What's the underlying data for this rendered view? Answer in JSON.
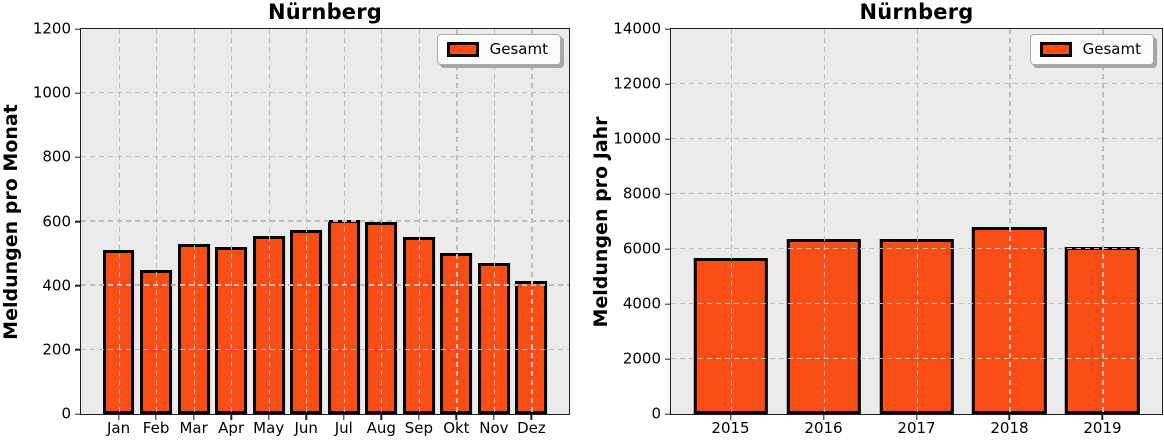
{
  "style": {
    "figure_background": "#ffffff",
    "plot_background": "#ebebeb",
    "grid_color": "#bdbdbd",
    "spine_color": "#1f1f1f",
    "bar_fill": "#fb4e16",
    "bar_edge": "#000000",
    "legend_background": "#fcfcfc",
    "legend_border": "#aaaaaa",
    "legend_shadow": "#a6a6a6"
  },
  "chart_data": [
    {
      "type": "bar",
      "title": "Nürnberg",
      "ylabel": "Meldungen pro Monat",
      "xlabel": "",
      "legend_label": "Gesamt",
      "legend_position": "upper right",
      "grid": true,
      "categories": [
        "Jan",
        "Feb",
        "Mar",
        "Apr",
        "May",
        "Jun",
        "Jul",
        "Aug",
        "Sep",
        "Okt",
        "Nov",
        "Dez"
      ],
      "values": [
        510,
        450,
        530,
        520,
        556,
        572,
        605,
        597,
        551,
        503,
        470,
        415
      ],
      "ylim": [
        0,
        1200
      ],
      "ytick_step": 200,
      "xlim": [
        -1,
        12
      ],
      "bar_width": 0.85
    },
    {
      "type": "bar",
      "title": "Nürnberg",
      "ylabel": "Meldungen pro Jahr",
      "xlabel": "",
      "legend_label": "Gesamt",
      "legend_position": "upper right",
      "grid": true,
      "categories": [
        "2015",
        "2016",
        "2017",
        "2018",
        "2019"
      ],
      "values": [
        5680,
        6370,
        6360,
        6800,
        6080
      ],
      "ylim": [
        0,
        14000
      ],
      "ytick_step": 2000,
      "xlim": [
        -0.64,
        4.64
      ],
      "bar_width": 0.8
    }
  ]
}
